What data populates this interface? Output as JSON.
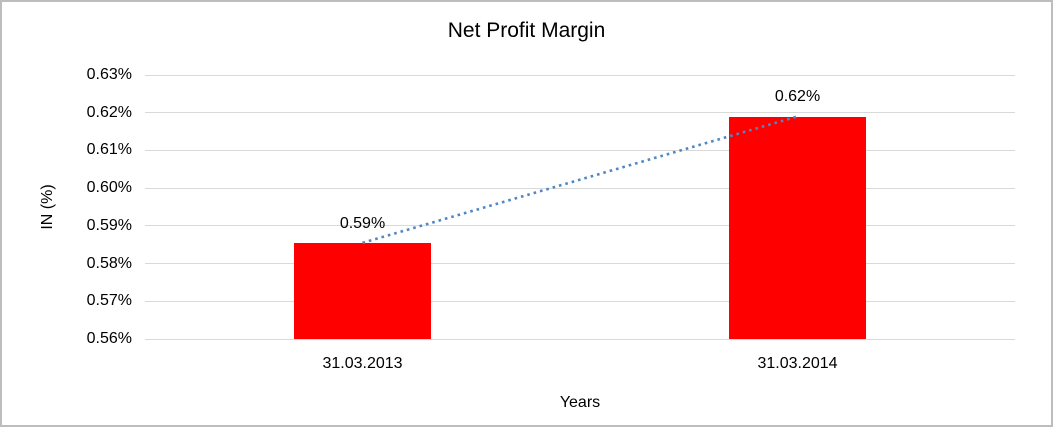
{
  "chart": {
    "title": "Net Profit Margin",
    "y_axis_title": "IN (%)",
    "x_axis_title": "Years",
    "colors": {
      "bar": "#ff0000",
      "trendline": "#4f86c5",
      "gridline": "#d9d9d9",
      "text": "#000000",
      "frame_border": "#bdbdbd",
      "background": "#ffffff"
    }
  },
  "chart_data": {
    "type": "bar",
    "title": "Net Profit Margin",
    "xlabel": "Years",
    "ylabel": "IN (%)",
    "categories": [
      "31.03.2013",
      "31.03.2014"
    ],
    "values": [
      0.5855,
      0.619
    ],
    "data_labels": [
      "0.59%",
      "0.62%"
    ],
    "ylim": [
      0.56,
      0.63
    ],
    "y_tick_values": [
      0.63,
      0.62,
      0.61,
      0.6,
      0.59,
      0.58,
      0.57,
      0.56
    ],
    "y_tick_labels": [
      "0.63%",
      "0.62%",
      "0.61%",
      "0.60%",
      "0.59%",
      "0.58%",
      "0.57%",
      "0.56%"
    ],
    "grid": true,
    "legend": false,
    "bar_color": "#ff0000",
    "trendline": {
      "type": "linear",
      "style": "dotted",
      "color": "#4f86c5",
      "connects": [
        "31.03.2013",
        "31.03.2014"
      ]
    }
  }
}
